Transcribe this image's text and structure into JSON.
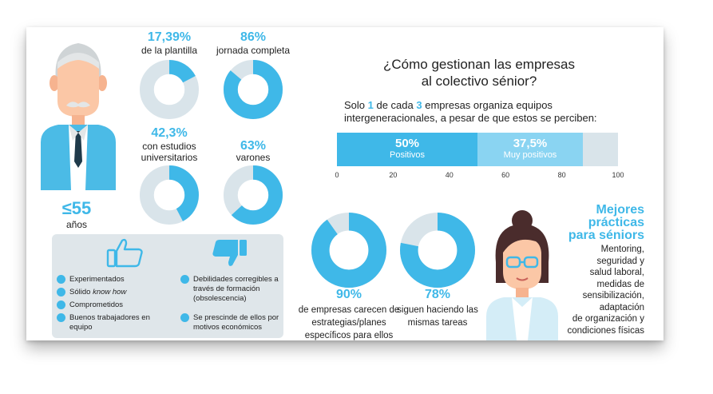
{
  "header": {
    "title_line1": "¿Cómo gestionan las empresas",
    "title_line2": "al colectivo sénior?"
  },
  "stats": {
    "age": {
      "value": "≤55",
      "label": "años"
    },
    "donuts": [
      {
        "value": "17,39%",
        "label": "de la plantilla",
        "percent": 17.39
      },
      {
        "value": "86%",
        "label": "jornada completa",
        "percent": 86
      },
      {
        "value": "42,3%",
        "label": "con estudios universitarios",
        "percent": 42.3
      },
      {
        "value": "63%",
        "label": "varones",
        "percent": 63
      },
      {
        "value": "90%",
        "label": "de empresas carecen de estrategias/planes específicos para ellos",
        "percent": 90
      },
      {
        "value": "78%",
        "label": "siguen haciendo las mismas tareas",
        "percent": 78
      }
    ]
  },
  "panel": {
    "strengths": [
      "Experimentados",
      "Sólido know how",
      "Comprometidos",
      "Buenos trabajadores en equipo"
    ],
    "strengths_know_how_prefix": "Sólido ",
    "strengths_know_how_italic": "know how",
    "weaknesses": [
      "Debilidades corregibles a través de formación (obsolescencia)",
      "Se prescinde de ellos por motivos económicos"
    ]
  },
  "bar": {
    "intro_a": "Solo ",
    "intro_num1": "1",
    "intro_b": " de cada ",
    "intro_num2": "3",
    "intro_c": " empresas organiza equipos intergeneracionales, a pesar de que estos se perciben:"
  },
  "chart_data": [
    {
      "type": "bar",
      "orientation": "horizontal-stacked",
      "segments": [
        {
          "name": "Positivos",
          "value": 50,
          "value_label": "50%"
        },
        {
          "name": "Muy positivos",
          "value": 37.5,
          "value_label": "37,5%"
        }
      ],
      "xlim": [
        0,
        100
      ],
      "ticks": [
        0,
        20,
        40,
        60,
        80,
        100
      ]
    },
    {
      "type": "pie",
      "style": "donut",
      "slices": [
        {
          "label": "de la plantilla",
          "value": 17.39
        },
        {
          "label": "jornada completa",
          "value": 86
        },
        {
          "label": "con estudios universitarios",
          "value": 42.3
        },
        {
          "label": "varones",
          "value": 63
        },
        {
          "label": "de empresas carecen de estrategias/planes específicos para ellos",
          "value": 90
        },
        {
          "label": "siguen haciendo las mismas tareas",
          "value": 78
        }
      ]
    }
  ],
  "best_practices": {
    "title_line1": "Mejores",
    "title_line2": "prácticas",
    "title_line3": "para séniors",
    "lines": [
      "Mentoring,",
      "seguridad y",
      "salud laboral,",
      "medidas de",
      "sensibilización,",
      "adaptación",
      "de organización y",
      "condiciones físicas"
    ]
  },
  "colors": {
    "accent": "#3fb8e8",
    "light_accent": "#8ad4f2",
    "track": "#d9e4ea",
    "panel": "#dfe6ea"
  }
}
